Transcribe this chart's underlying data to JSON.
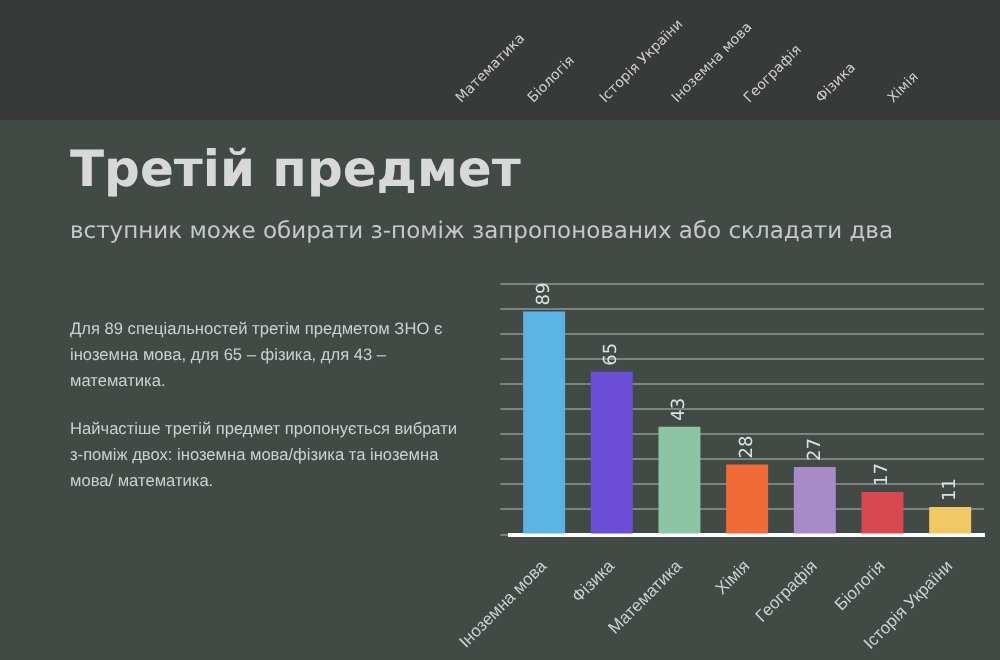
{
  "chart_data": [
    {
      "type": "other",
      "annotations": [
        "Математика",
        "Біологія",
        "Історія України",
        "Іноземна мова",
        "Географія",
        "Фізика",
        "Хімія"
      ]
    },
    {
      "type": "bar",
      "title": "Третій предмет",
      "subtitle": "вступник може обирати з-поміж запропонованих або складати два",
      "categories": [
        "Іноземна мова",
        "Фізика",
        "Математика",
        "Хімія",
        "Географія",
        "Біологія",
        "Історія України"
      ],
      "values": [
        89,
        65,
        43,
        28,
        27,
        17,
        11
      ],
      "colors": [
        "#5ab4e5",
        "#6a4fd6",
        "#8cc4a6",
        "#f26a35",
        "#a98bc9",
        "#d9484f",
        "#f1c964"
      ],
      "ylim": [
        0,
        100
      ],
      "yticks": [
        0,
        10,
        20,
        30,
        40,
        50,
        60,
        70,
        80,
        90,
        100
      ],
      "tick_labels": "x",
      "grid": "y",
      "data_labels": true,
      "annotations": [
        "Для 89 спеціальностей третім предметом ЗНО є іноземна мова, для 65 – фізика, для 43 – математика.",
        "Найчастіше третій предмет пропонується вибрати з-поміж двох: іноземна мова/фізика та іноземна мова/ математика."
      ]
    }
  ]
}
